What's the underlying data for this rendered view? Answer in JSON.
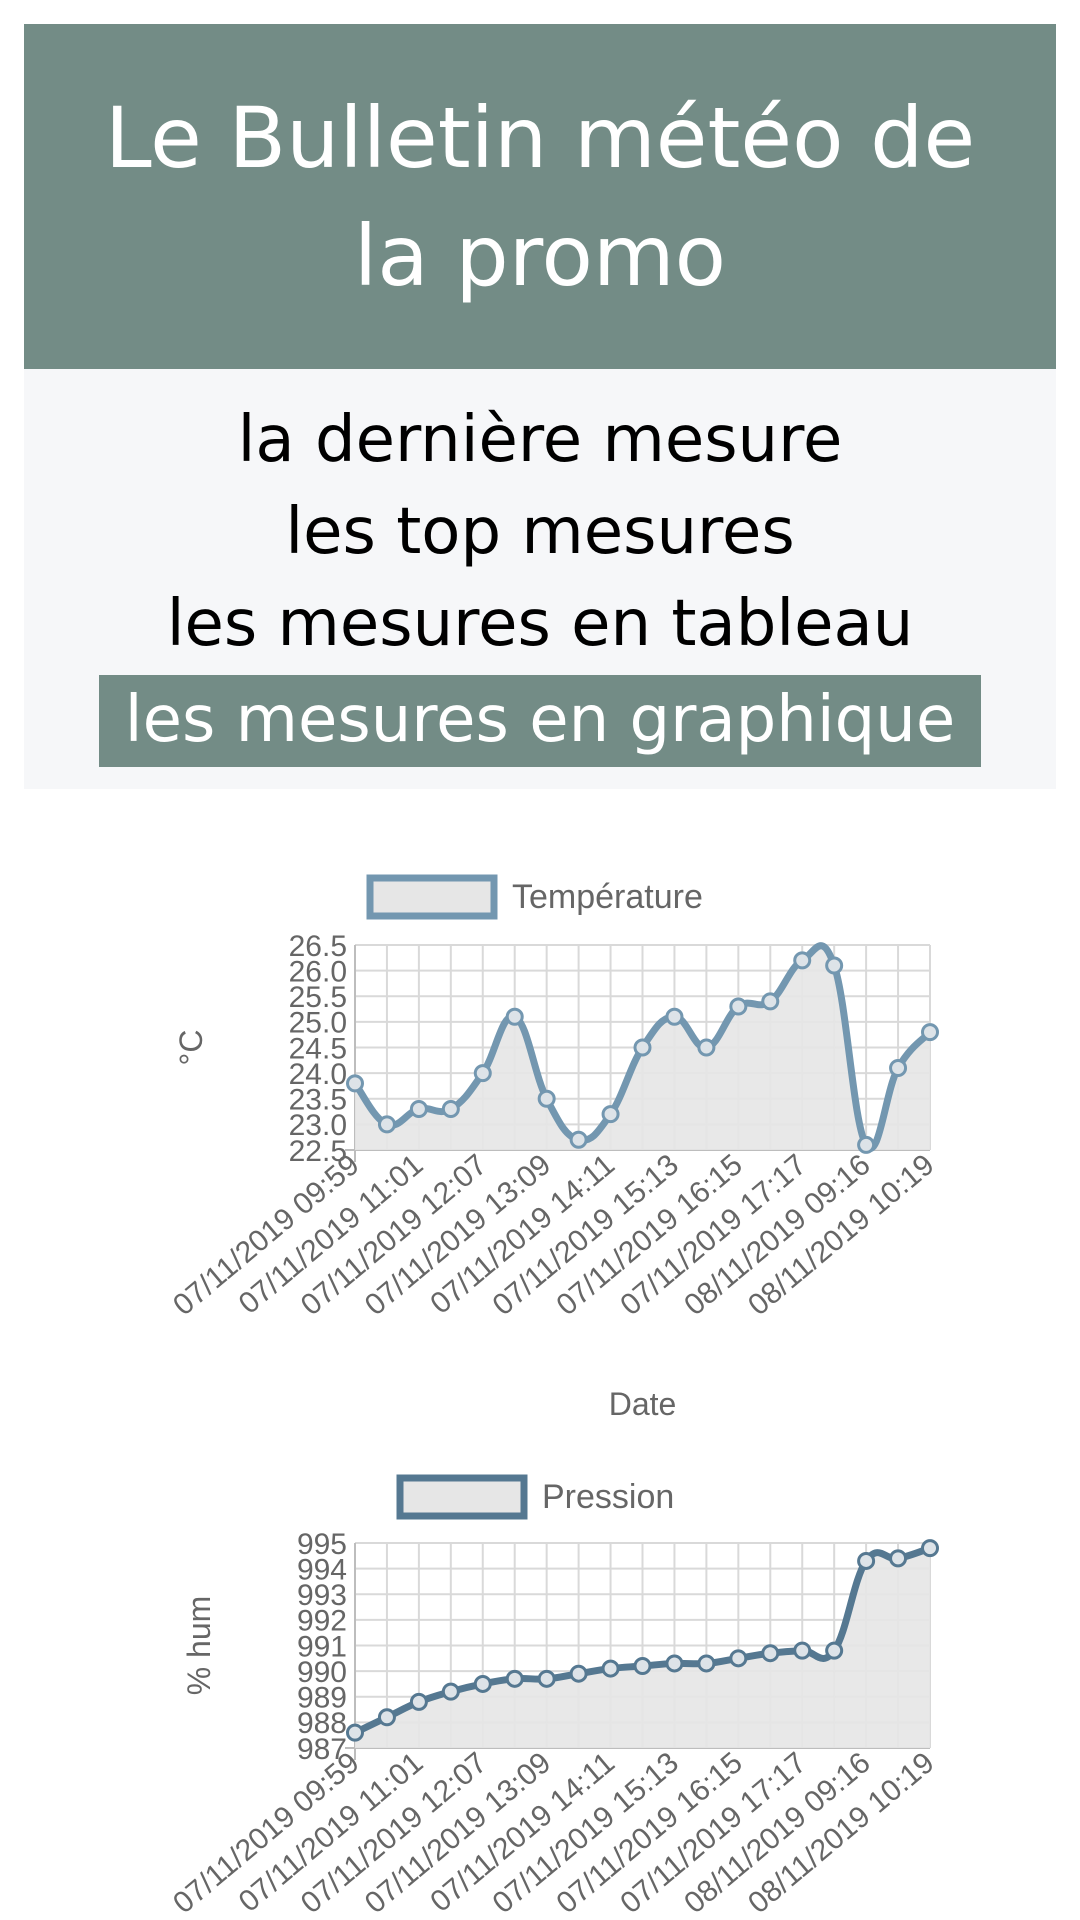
{
  "header": {
    "title": "Le Bulletin météo de la promo"
  },
  "nav": {
    "items": [
      {
        "label": "la dernière mesure",
        "active": false
      },
      {
        "label": "les top mesures",
        "active": false
      },
      {
        "label": "les mesures en tableau",
        "active": false
      },
      {
        "label": "les mesures en graphique",
        "active": true
      }
    ]
  },
  "colors": {
    "accent": "#738c86",
    "temp_line": "#7397b0",
    "press_line": "#557891",
    "fill": "#e6e6e6"
  },
  "chart_data": [
    {
      "type": "line",
      "title": "",
      "xlabel": "Date",
      "ylabel": "°C",
      "legend": "top",
      "grid": true,
      "ylim": [
        22.5,
        26.5
      ],
      "yticks": [
        "26.5",
        "26.0",
        "25.5",
        "25.0",
        "24.5",
        "24.0",
        "23.5",
        "23.0",
        "22.5"
      ],
      "x_tick_labels": [
        "07/11/2019 09:59",
        "07/11/2019 11:01",
        "07/11/2019 12:07",
        "07/11/2019 13:09",
        "07/11/2019 14:11",
        "07/11/2019 15:13",
        "07/11/2019 16:15",
        "07/11/2019 17:17",
        "08/11/2019 09:16",
        "08/11/2019 10:19"
      ],
      "series": [
        {
          "name": "Température",
          "values": [
            23.8,
            23.0,
            23.3,
            23.3,
            24.0,
            25.1,
            23.5,
            22.7,
            23.2,
            24.5,
            25.1,
            24.5,
            25.3,
            25.4,
            26.2,
            26.1,
            22.6,
            24.1,
            24.8
          ]
        }
      ]
    },
    {
      "type": "line",
      "title": "",
      "xlabel": "",
      "ylabel": "% hum",
      "legend": "top",
      "grid": true,
      "ylim": [
        987,
        995
      ],
      "yticks": [
        "995",
        "994",
        "993",
        "992",
        "991",
        "990",
        "989",
        "988",
        "987"
      ],
      "x_tick_labels": [
        "07/11/2019 09:59",
        "07/11/2019 11:01",
        "07/11/2019 12:07",
        "07/11/2019 13:09",
        "07/11/2019 14:11",
        "07/11/2019 15:13",
        "07/11/2019 16:15",
        "07/11/2019 17:17",
        "08/11/2019 09:16",
        "08/11/2019 10:19"
      ],
      "series": [
        {
          "name": "Pression",
          "values": [
            987.6,
            988.2,
            988.8,
            989.2,
            989.5,
            989.7,
            989.7,
            989.9,
            990.1,
            990.2,
            990.3,
            990.3,
            990.5,
            990.7,
            990.8,
            990.8,
            994.3,
            994.4,
            994.8
          ]
        }
      ]
    }
  ]
}
